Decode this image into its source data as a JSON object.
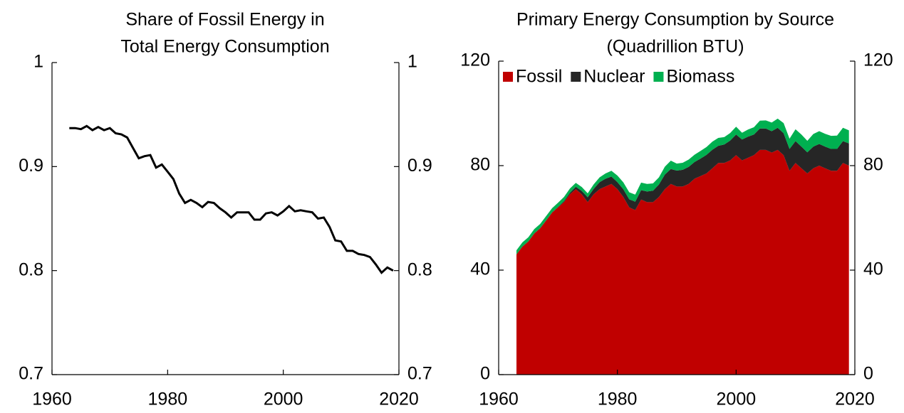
{
  "chart_data": [
    {
      "type": "line",
      "title": [
        "Share of Fossil Energy in",
        "Total Energy Consumption"
      ],
      "x": [
        1963,
        1964,
        1965,
        1966,
        1967,
        1968,
        1969,
        1970,
        1971,
        1972,
        1973,
        1974,
        1975,
        1976,
        1977,
        1978,
        1979,
        1980,
        1981,
        1982,
        1983,
        1984,
        1985,
        1986,
        1987,
        1988,
        1989,
        1990,
        1991,
        1992,
        1993,
        1994,
        1995,
        1996,
        1997,
        1998,
        1999,
        2000,
        2001,
        2002,
        2003,
        2004,
        2005,
        2006,
        2007,
        2008,
        2009,
        2010,
        2011,
        2012,
        2013,
        2014,
        2015,
        2016,
        2017,
        2018,
        2019
      ],
      "values": [
        0.937,
        0.937,
        0.936,
        0.939,
        0.935,
        0.938,
        0.935,
        0.937,
        0.932,
        0.931,
        0.928,
        0.918,
        0.908,
        0.91,
        0.911,
        0.899,
        0.902,
        0.895,
        0.888,
        0.874,
        0.865,
        0.868,
        0.865,
        0.861,
        0.866,
        0.865,
        0.86,
        0.856,
        0.851,
        0.856,
        0.856,
        0.856,
        0.849,
        0.849,
        0.855,
        0.856,
        0.853,
        0.857,
        0.862,
        0.857,
        0.858,
        0.857,
        0.856,
        0.85,
        0.851,
        0.842,
        0.829,
        0.828,
        0.819,
        0.819,
        0.816,
        0.815,
        0.813,
        0.806,
        0.798,
        0.803,
        0.8
      ],
      "color": "#000000",
      "xlim": [
        1960,
        2020
      ],
      "xticks": [
        1960,
        1980,
        2000,
        2020
      ],
      "ylim": [
        0.7,
        1
      ],
      "yticks": [
        0.7,
        0.8,
        0.9,
        1
      ],
      "mirror_y_axis": true
    },
    {
      "type": "stacked_area",
      "title": [
        "Primary Energy Consumption by Source",
        "(Quadrillion BTU)"
      ],
      "x": [
        1963,
        1964,
        1965,
        1966,
        1967,
        1968,
        1969,
        1970,
        1971,
        1972,
        1973,
        1974,
        1975,
        1976,
        1977,
        1978,
        1979,
        1980,
        1981,
        1982,
        1983,
        1984,
        1985,
        1986,
        1987,
        1988,
        1989,
        1990,
        1991,
        1992,
        1993,
        1994,
        1995,
        1996,
        1997,
        1998,
        1999,
        2000,
        2001,
        2002,
        2003,
        2004,
        2005,
        2006,
        2007,
        2008,
        2009,
        2010,
        2011,
        2012,
        2013,
        2014,
        2015,
        2016,
        2017,
        2018,
        2019
      ],
      "series": [
        {
          "name": "Fossil",
          "color": "#c00000",
          "values": [
            46,
            49,
            51,
            54,
            56,
            59,
            62,
            64,
            66,
            69,
            71,
            69,
            66,
            69,
            71,
            72,
            73,
            71,
            68,
            64,
            63,
            67,
            66,
            66,
            68,
            71,
            73,
            72,
            72,
            73,
            75,
            76,
            77,
            79,
            81,
            81,
            82,
            84,
            82,
            83,
            84,
            86,
            86,
            85,
            86,
            84,
            78,
            81,
            79,
            77,
            79,
            80,
            79,
            78,
            78,
            81,
            80
          ]
        },
        {
          "name": "Nuclear",
          "color": "#262626",
          "values": [
            0,
            0,
            0,
            0.1,
            0.1,
            0.1,
            0.1,
            0.2,
            0.4,
            0.6,
            0.9,
            1.3,
            1.9,
            2.1,
            2.7,
            3,
            2.8,
            2.7,
            3,
            3.1,
            3.2,
            3.6,
            4.1,
            4.4,
            4.8,
            5.6,
            5.7,
            6.1,
            6.4,
            6.5,
            6.4,
            6.7,
            7.1,
            7.1,
            6.6,
            7.1,
            7.6,
            7.9,
            8,
            8.1,
            7.9,
            8.2,
            8.2,
            8.2,
            8.5,
            8.4,
            8.4,
            8.4,
            8.3,
            8.1,
            8.3,
            8.3,
            8.3,
            8.4,
            8.4,
            8.4,
            8.5
          ]
        },
        {
          "name": "Biomass",
          "color": "#00b050",
          "values": [
            1.6,
            1.6,
            1.6,
            1.6,
            1.6,
            1.6,
            1.6,
            1.6,
            1.6,
            1.6,
            1.5,
            1.5,
            1.5,
            1.7,
            1.8,
            2,
            2.2,
            2.5,
            2.6,
            2.7,
            2.7,
            2.9,
            2.9,
            2.8,
            2.7,
            3,
            3.2,
            2.7,
            2.7,
            2.8,
            2.8,
            2.9,
            3,
            3.1,
            3,
            2.8,
            2.9,
            3,
            2.6,
            2.7,
            2.8,
            3,
            3.1,
            3.3,
            3.5,
            3.9,
            3.9,
            4.5,
            4.6,
            4.4,
            4.8,
            4.9,
            4.9,
            5,
            5.1,
            5.1,
            5
          ]
        }
      ],
      "xlim": [
        1960,
        2020
      ],
      "xticks": [
        1960,
        1980,
        2000,
        2020
      ],
      "ylim": [
        0,
        120
      ],
      "yticks": [
        0,
        40,
        80,
        120
      ],
      "mirror_y_axis": true,
      "legend": "top-left"
    }
  ]
}
